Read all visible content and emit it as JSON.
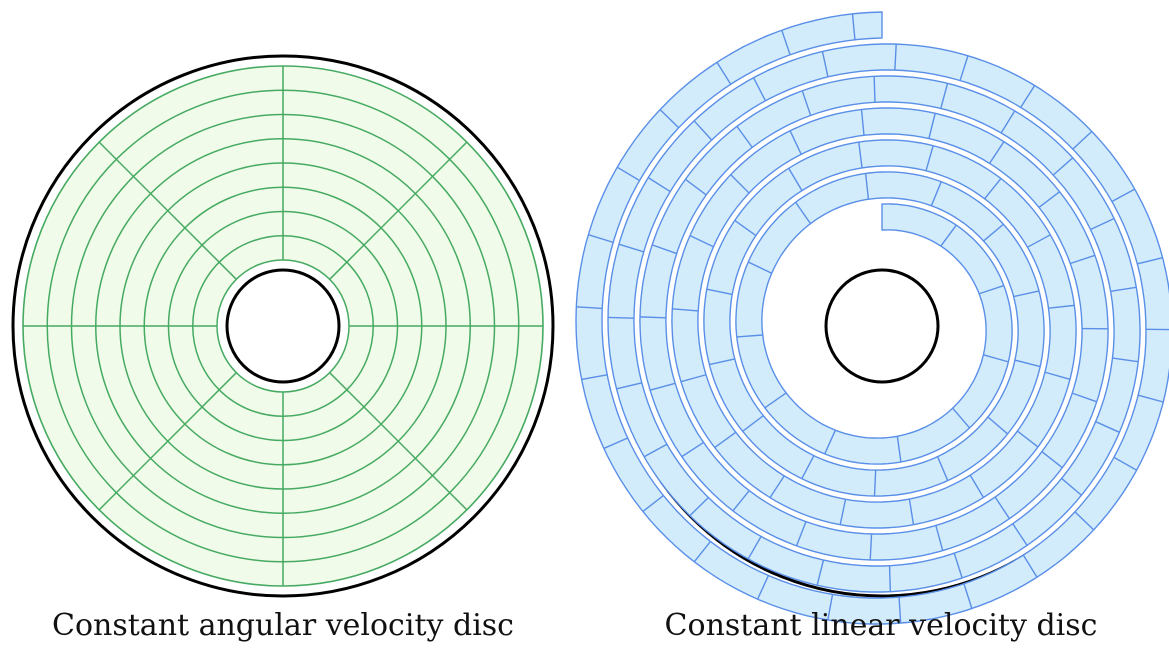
{
  "figure": {
    "left_disc": {
      "caption": "Constant angular velocity disc",
      "track_count": 8,
      "sector_count": 8,
      "fill_color": "#f1fbe9",
      "line_color": "#46aa62"
    },
    "right_disc": {
      "caption": "Constant linear velocity disc",
      "spiral_turns": 6,
      "fill_color": "#d3ecfb",
      "line_color": "#5a8fe8"
    },
    "outline_color": "#000000"
  }
}
